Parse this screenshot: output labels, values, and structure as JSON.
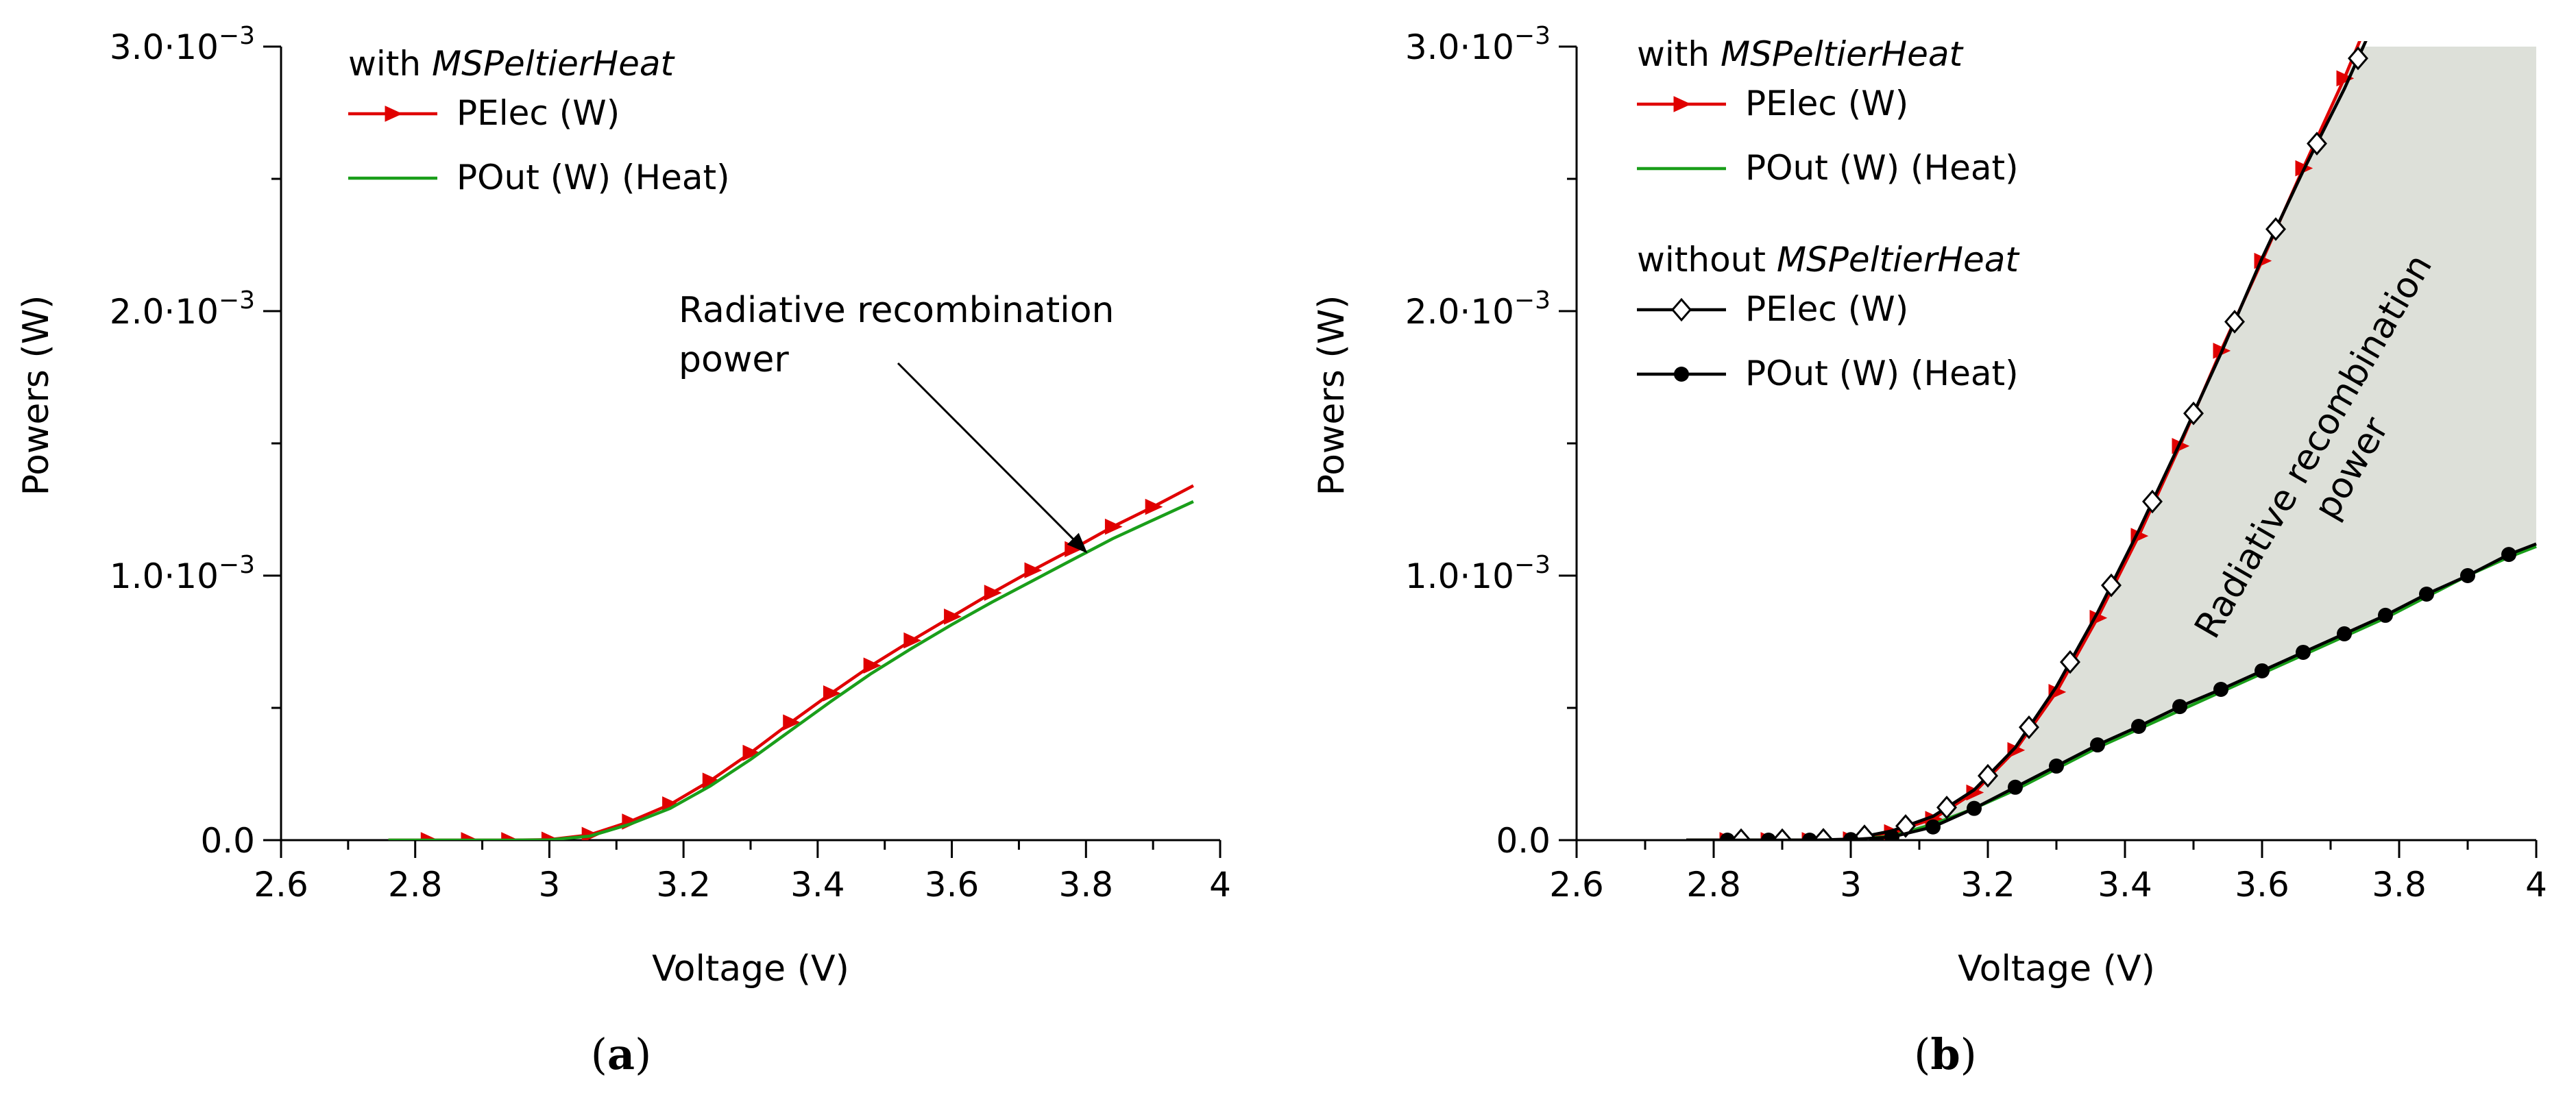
{
  "chart_data": [
    {
      "panel": "a",
      "type": "line",
      "panel_label": "a",
      "xlabel": "Voltage (V)",
      "ylabel": "Powers (W)",
      "xlim": [
        2.6,
        4.0
      ],
      "ylim": [
        0,
        0.003
      ],
      "x_ticks": [
        2.6,
        2.8,
        3.0,
        3.2,
        3.4,
        3.6,
        3.8,
        4.0
      ],
      "x_tick_labels": [
        "2.6",
        "2.8",
        "3",
        "3.2",
        "3.4",
        "3.6",
        "3.8",
        "4"
      ],
      "y_ticks": [
        0,
        0.001,
        0.002,
        0.003
      ],
      "y_tick_labels": [
        {
          "base": "0.0",
          "exp": ""
        },
        {
          "base": "1.0·10",
          "exp": "−3"
        },
        {
          "base": "2.0·10",
          "exp": "−3"
        },
        {
          "base": "3.0·10",
          "exp": "−3"
        }
      ],
      "legend": {
        "groups": [
          {
            "title_prefix": "with ",
            "title_italic": "MSPeltierHeat",
            "entries": [
              "PElec (W)",
              "POut (W) (Heat)"
            ]
          }
        ]
      },
      "annotation": {
        "lines": [
          "Radiative recombination",
          "power"
        ],
        "arrow_to": [
          3.8,
          0.00109
        ]
      },
      "series": [
        {
          "name": "PElec (W)",
          "color": "#e00000",
          "marker": "triangle-right",
          "x": [
            2.76,
            2.82,
            2.88,
            2.94,
            3.0,
            3.06,
            3.12,
            3.18,
            3.24,
            3.3,
            3.36,
            3.42,
            3.48,
            3.54,
            3.6,
            3.66,
            3.72,
            3.78,
            3.84,
            3.9,
            3.96
          ],
          "y": [
            0,
            0,
            0,
            0,
            2e-06,
            2e-05,
            7e-05,
            0.000135,
            0.000225,
            0.00033,
            0.000445,
            0.000555,
            0.00066,
            0.000755,
            0.000845,
            0.000935,
            0.00102,
            0.0011,
            0.001185,
            0.00126,
            0.00134
          ],
          "marker_x": [
            2.82,
            2.88,
            2.94,
            3.0,
            3.06,
            3.12,
            3.18,
            3.24,
            3.3,
            3.36,
            3.42,
            3.48,
            3.54,
            3.6,
            3.66,
            3.72,
            3.78,
            3.84,
            3.9
          ]
        },
        {
          "name": "POut (W) (Heat)",
          "color": "#1a9e1a",
          "marker": "none",
          "x": [
            2.76,
            2.82,
            2.88,
            2.94,
            3.0,
            3.06,
            3.12,
            3.18,
            3.24,
            3.3,
            3.36,
            3.42,
            3.48,
            3.54,
            3.6,
            3.66,
            3.72,
            3.78,
            3.84,
            3.9,
            3.96
          ],
          "y": [
            0,
            0,
            0,
            0,
            1e-06,
            1.5e-05,
            6e-05,
            0.00012,
            0.000205,
            0.000305,
            0.000415,
            0.000525,
            0.00063,
            0.000725,
            0.000815,
            0.0009,
            0.00098,
            0.00106,
            0.00114,
            0.00121,
            0.00128
          ]
        }
      ]
    },
    {
      "panel": "b",
      "type": "line",
      "panel_label": "b",
      "xlabel": "Voltage (V)",
      "ylabel": "Powers (W)",
      "xlim": [
        2.6,
        4.0
      ],
      "ylim": [
        0,
        0.003
      ],
      "x_ticks": [
        2.6,
        2.8,
        3.0,
        3.2,
        3.4,
        3.6,
        3.8,
        4.0
      ],
      "x_tick_labels": [
        "2.6",
        "2.8",
        "3",
        "3.2",
        "3.4",
        "3.6",
        "3.8",
        "4"
      ],
      "y_ticks": [
        0,
        0.001,
        0.002,
        0.003
      ],
      "y_tick_labels": [
        {
          "base": "0.0",
          "exp": ""
        },
        {
          "base": "1.0·10",
          "exp": "−3"
        },
        {
          "base": "2.0·10",
          "exp": "−3"
        },
        {
          "base": "3.0·10",
          "exp": "−3"
        }
      ],
      "legend": {
        "groups": [
          {
            "title_prefix": "with ",
            "title_italic": "MSPeltierHeat",
            "entries": [
              "PElec (W)",
              "POut (W) (Heat)"
            ]
          },
          {
            "title_prefix": "without ",
            "title_italic": "MSPeltierHeat",
            "entries": [
              "PElec (W)",
              "POut (W) (Heat)"
            ]
          }
        ]
      },
      "annotation": {
        "lines": [
          "Radiative recombination",
          "power"
        ],
        "rotation_deg": -60
      },
      "shaded_region": {
        "color": "#dde0d9",
        "between": [
          "PElec (W)",
          "POut (W) (Heat)"
        ],
        "y_cap": 0.003
      },
      "series": [
        {
          "name": "PElec (W)",
          "group": "with MSPeltierHeat",
          "color": "#e00000",
          "marker": "triangle-right",
          "x": [
            2.76,
            2.82,
            2.88,
            2.94,
            3.0,
            3.06,
            3.12,
            3.18,
            3.24,
            3.3,
            3.36,
            3.42,
            3.48,
            3.54,
            3.6,
            3.66,
            3.72,
            3.755
          ],
          "y": [
            0,
            0,
            0,
            0,
            3e-06,
            3e-05,
            8e-05,
            0.00018,
            0.00034,
            0.00056,
            0.00084,
            0.00115,
            0.00149,
            0.00185,
            0.00219,
            0.00254,
            0.00288,
            0.0031
          ],
          "marker_x": [
            2.82,
            2.88,
            2.94,
            3.0,
            3.06,
            3.12,
            3.18,
            3.24,
            3.3,
            3.36,
            3.42,
            3.48,
            3.54,
            3.6,
            3.66,
            3.72
          ]
        },
        {
          "name": "POut (W) (Heat)",
          "group": "with MSPeltierHeat",
          "color": "#1a9e1a",
          "marker": "none",
          "x": [
            2.76,
            2.82,
            2.88,
            2.94,
            3.0,
            3.06,
            3.12,
            3.18,
            3.24,
            3.3,
            3.36,
            3.42,
            3.48,
            3.54,
            3.6,
            3.66,
            3.72,
            3.78,
            3.84,
            3.9,
            3.96,
            4.0
          ],
          "y": [
            0,
            0,
            0,
            0,
            2e-06,
            1.5e-05,
            6e-05,
            0.00012,
            0.00019,
            0.00027,
            0.00035,
            0.00042,
            0.00049,
            0.00056,
            0.00063,
            0.0007,
            0.00077,
            0.00084,
            0.00092,
            0.001,
            0.00107,
            0.00111
          ]
        },
        {
          "name": "PElec (W)",
          "group": "without MSPeltierHeat",
          "color": "#000000",
          "marker": "diamond-open",
          "x": [
            2.76,
            2.82,
            2.88,
            2.94,
            3.0,
            3.06,
            3.12,
            3.18,
            3.24,
            3.3,
            3.36,
            3.42,
            3.48,
            3.54,
            3.6,
            3.66,
            3.72,
            3.765
          ],
          "y": [
            0,
            0,
            0,
            0,
            4e-06,
            3.5e-05,
            9e-05,
            0.00019,
            0.00035,
            0.00058,
            0.00086,
            0.00117,
            0.0015,
            0.00184,
            0.0022,
            0.00253,
            0.00284,
            0.0031
          ],
          "marker_x": [
            2.84,
            2.9,
            2.96,
            3.02,
            3.08,
            3.14,
            3.2,
            3.26,
            3.32,
            3.38,
            3.44,
            3.5,
            3.56,
            3.62,
            3.68,
            3.74
          ]
        },
        {
          "name": "POut (W) (Heat)",
          "group": "without MSPeltierHeat",
          "color": "#000000",
          "marker": "circle-filled",
          "x": [
            2.76,
            2.82,
            2.88,
            2.94,
            3.0,
            3.06,
            3.12,
            3.18,
            3.24,
            3.3,
            3.36,
            3.42,
            3.48,
            3.54,
            3.6,
            3.66,
            3.72,
            3.78,
            3.84,
            3.9,
            3.96,
            4.0
          ],
          "y": [
            0,
            0,
            0,
            0,
            2e-06,
            1.2e-05,
            5e-05,
            0.00012,
            0.0002,
            0.00028,
            0.00036,
            0.00043,
            0.000505,
            0.00057,
            0.00064,
            0.00071,
            0.00078,
            0.00085,
            0.00093,
            0.001,
            0.00108,
            0.00112
          ],
          "marker_x": [
            2.82,
            2.88,
            2.94,
            3.0,
            3.06,
            3.12,
            3.18,
            3.24,
            3.3,
            3.36,
            3.42,
            3.48,
            3.54,
            3.6,
            3.66,
            3.72,
            3.78,
            3.84,
            3.9,
            3.96
          ]
        }
      ]
    }
  ]
}
